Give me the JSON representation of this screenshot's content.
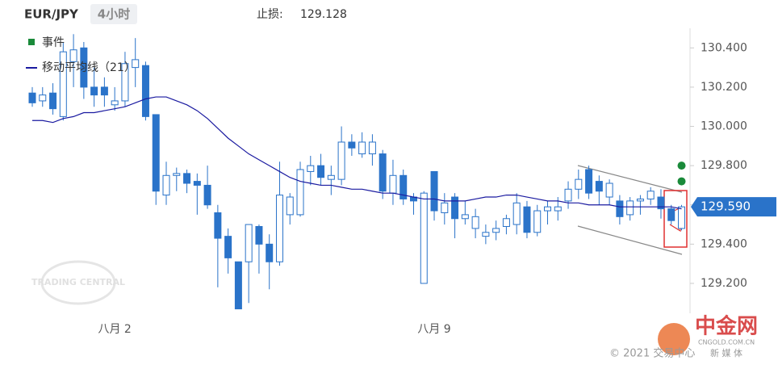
{
  "chart_data": {
    "type": "candlestick",
    "title": "EUR/JPY",
    "timeframe": "4小时",
    "stop_loss_label": "止损:",
    "stop_loss": 129.128,
    "last_price": {
      "value": 129.59,
      "label": "129.590"
    },
    "watermark": "TRADING CENTRAL",
    "footer": "© 2021 交易中心",
    "logo": {
      "name": "中金网",
      "site": "CNGOLD.COM.CN",
      "tag": "新 媒 体"
    },
    "color": "#2a73c9",
    "ylim": [
      129.06,
      130.5
    ],
    "yticks": [
      {
        "value": 129.2,
        "label": "129.200"
      },
      {
        "value": 129.4,
        "label": "129.400"
      },
      {
        "value": 129.6,
        "label": "129.600"
      },
      {
        "value": 129.8,
        "label": "129.800"
      },
      {
        "value": 130.0,
        "label": "130.000"
      },
      {
        "value": 130.2,
        "label": "130.200"
      },
      {
        "value": 130.4,
        "label": "130.400"
      }
    ],
    "categories": [
      null,
      null,
      null,
      null,
      null,
      null,
      null,
      null,
      "八月 2",
      null,
      null,
      null,
      null,
      null,
      null,
      null,
      null,
      null,
      null,
      null,
      null,
      null,
      null,
      null,
      null,
      null,
      null,
      null,
      null,
      null,
      null,
      null,
      null,
      null,
      null,
      null,
      null,
      null,
      null,
      "八月 9",
      null,
      null,
      null,
      null,
      null,
      null,
      null,
      null,
      null,
      null,
      null,
      null,
      null,
      null,
      null,
      null,
      null,
      null,
      null,
      null,
      null,
      null,
      null,
      null
    ],
    "open": [
      130.17,
      130.13,
      130.17,
      130.05,
      130.33,
      130.4,
      130.2,
      130.2,
      130.11,
      130.13,
      130.3,
      130.31,
      130.06,
      129.65,
      129.75,
      129.76,
      129.72,
      129.7,
      129.56,
      129.44,
      129.31,
      129.31,
      129.49,
      129.4,
      129.31,
      129.55,
      129.55,
      129.77,
      129.8,
      129.73,
      129.73,
      129.92,
      129.86,
      129.86,
      129.86,
      129.66,
      129.75,
      129.64,
      129.2,
      129.77,
      129.56,
      129.64,
      129.53,
      129.48,
      129.44,
      129.46,
      129.49,
      129.5,
      129.59,
      129.46,
      129.57,
      129.57,
      129.62,
      129.68,
      129.78,
      129.72,
      129.64,
      129.62,
      129.55,
      129.62,
      129.63,
      129.64,
      129.58,
      129.48
    ],
    "high": [
      130.2,
      130.2,
      130.22,
      130.43,
      130.47,
      130.43,
      130.3,
      130.25,
      130.2,
      130.38,
      130.45,
      130.33,
      130.06,
      129.82,
      129.79,
      129.78,
      129.76,
      129.8,
      129.6,
      129.48,
      129.31,
      129.5,
      129.5,
      129.45,
      129.82,
      129.66,
      129.82,
      129.85,
      129.86,
      129.8,
      130.0,
      129.96,
      129.97,
      129.96,
      129.88,
      129.83,
      129.78,
      129.66,
      129.67,
      129.77,
      129.66,
      129.66,
      129.62,
      129.58,
      129.5,
      129.52,
      129.55,
      129.66,
      129.62,
      129.6,
      129.62,
      129.64,
      129.72,
      129.78,
      129.8,
      129.75,
      129.73,
      129.65,
      129.64,
      129.65,
      129.69,
      129.68,
      129.6,
      129.6
    ],
    "low": [
      130.1,
      130.1,
      130.06,
      130.03,
      130.2,
      130.14,
      130.1,
      130.1,
      130.08,
      130.1,
      130.2,
      130.03,
      129.6,
      129.6,
      129.67,
      129.66,
      129.55,
      129.58,
      129.18,
      129.25,
      129.07,
      129.1,
      129.25,
      129.17,
      129.29,
      129.5,
      129.54,
      129.7,
      129.7,
      129.65,
      129.7,
      129.85,
      129.84,
      129.8,
      129.63,
      129.6,
      129.6,
      129.55,
      129.2,
      129.52,
      129.5,
      129.43,
      129.5,
      129.43,
      129.4,
      129.42,
      129.45,
      129.45,
      129.43,
      129.44,
      129.5,
      129.52,
      129.58,
      129.63,
      129.63,
      129.6,
      129.6,
      129.5,
      129.52,
      129.55,
      129.6,
      129.53,
      129.5,
      129.47
    ],
    "close": [
      130.12,
      130.16,
      130.09,
      130.38,
      130.39,
      130.2,
      130.16,
      130.16,
      130.13,
      130.32,
      130.34,
      130.05,
      129.67,
      129.75,
      129.76,
      129.71,
      129.7,
      129.6,
      129.43,
      129.33,
      129.07,
      129.5,
      129.4,
      129.31,
      129.65,
      129.64,
      129.78,
      129.8,
      129.74,
      129.75,
      129.92,
      129.89,
      129.92,
      129.92,
      129.67,
      129.75,
      129.63,
      129.62,
      129.66,
      129.57,
      129.61,
      129.53,
      129.55,
      129.54,
      129.46,
      129.48,
      129.53,
      129.61,
      129.46,
      129.57,
      129.59,
      129.59,
      129.68,
      129.73,
      129.66,
      129.67,
      129.71,
      129.54,
      129.62,
      129.63,
      129.67,
      129.58,
      129.52,
      129.59
    ],
    "series": [
      {
        "name": "移动平均线（21）",
        "color": "#1a1aa0",
        "values": [
          130.03,
          130.03,
          130.02,
          130.04,
          130.05,
          130.07,
          130.07,
          130.08,
          130.09,
          130.1,
          130.12,
          130.14,
          130.15,
          130.15,
          130.13,
          130.11,
          130.08,
          130.04,
          129.99,
          129.94,
          129.9,
          129.86,
          129.83,
          129.8,
          129.77,
          129.74,
          129.72,
          129.71,
          129.7,
          129.7,
          129.69,
          129.68,
          129.68,
          129.67,
          129.66,
          129.66,
          129.65,
          129.64,
          129.63,
          129.63,
          129.62,
          129.62,
          129.62,
          129.63,
          129.64,
          129.64,
          129.65,
          129.65,
          129.64,
          129.63,
          129.62,
          129.62,
          129.61,
          129.61,
          129.6,
          129.6,
          129.6,
          129.59,
          129.59,
          129.59,
          129.59,
          129.59,
          129.59,
          129.58
        ]
      }
    ],
    "events": {
      "name": "事件",
      "color": "#1a8a3a",
      "values": [
        129.8,
        129.72
      ]
    }
  }
}
